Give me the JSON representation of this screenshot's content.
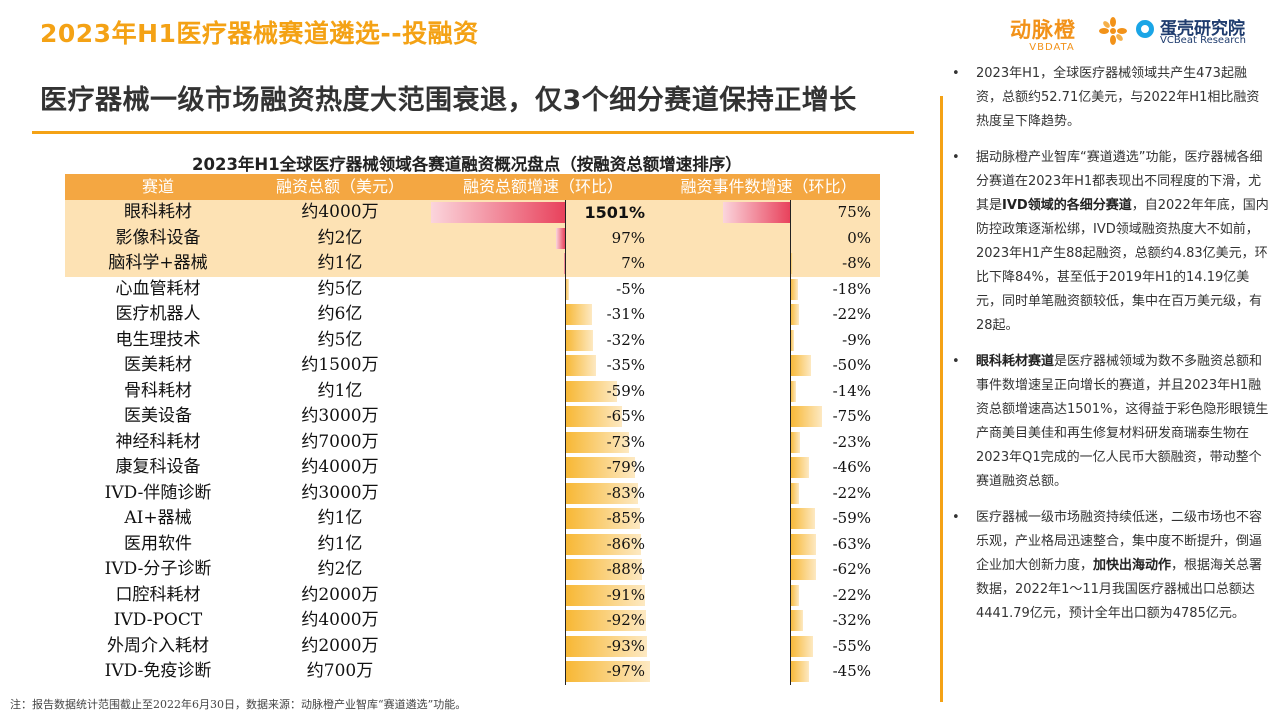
{
  "header": {
    "section_title": "2023年H1医疗器械赛道遴选--投融资",
    "headline": "医疗器械一级市场融资热度大范围衰退，仅3个细分赛道保持正增长"
  },
  "logos": {
    "dongmaicheng_cn": "动脉橙",
    "dongmaicheng_en": "VBDATA",
    "vcbeat_cn": "蛋壳研究院",
    "vcbeat_en": "VCBeat Research"
  },
  "colors": {
    "accent": "#f4a215",
    "header_fill": "#f4a742",
    "highlight_row": "#fde2b4",
    "positive_bar": "#e8425c",
    "negative_bar": "#f7b733"
  },
  "table": {
    "title": "2023年H1全球医疗器械领域各赛道融资概况盘点（按融资总额增速排序）",
    "columns": [
      "赛道",
      "融资总额（美元）",
      "融资总额增速（环比）",
      "融资事件数增速（环比）"
    ],
    "rows": [
      {
        "name": "眼科耗材",
        "amount": "约4000万",
        "growth_amount": "1501%",
        "growth_events": "75%"
      },
      {
        "name": "影像科设备",
        "amount": "约2亿",
        "growth_amount": "97%",
        "growth_events": "0%"
      },
      {
        "name": "脑科学+器械",
        "amount": "约1亿",
        "growth_amount": "7%",
        "growth_events": "-8%"
      },
      {
        "name": "心血管耗材",
        "amount": "约5亿",
        "growth_amount": "-5%",
        "growth_events": "-18%"
      },
      {
        "name": "医疗机器人",
        "amount": "约6亿",
        "growth_amount": "-31%",
        "growth_events": "-22%"
      },
      {
        "name": "电生理技术",
        "amount": "约5亿",
        "growth_amount": "-32%",
        "growth_events": "-9%"
      },
      {
        "name": "医美耗材",
        "amount": "约1500万",
        "growth_amount": "-35%",
        "growth_events": "-50%"
      },
      {
        "name": "骨科耗材",
        "amount": "约1亿",
        "growth_amount": "-59%",
        "growth_events": "-14%"
      },
      {
        "name": "医美设备",
        "amount": "约3000万",
        "growth_amount": "-65%",
        "growth_events": "-75%"
      },
      {
        "name": "神经科耗材",
        "amount": "约7000万",
        "growth_amount": "-73%",
        "growth_events": "-23%"
      },
      {
        "name": "康复科设备",
        "amount": "约4000万",
        "growth_amount": "-79%",
        "growth_events": "-46%"
      },
      {
        "name": "IVD-伴随诊断",
        "amount": "约3000万",
        "growth_amount": "-83%",
        "growth_events": "-22%"
      },
      {
        "name": "AI+器械",
        "amount": "约1亿",
        "growth_amount": "-85%",
        "growth_events": "-59%"
      },
      {
        "name": "医用软件",
        "amount": "约1亿",
        "growth_amount": "-86%",
        "growth_events": "-63%"
      },
      {
        "name": "IVD-分子诊断",
        "amount": "约2亿",
        "growth_amount": "-88%",
        "growth_events": "-62%"
      },
      {
        "name": "口腔科耗材",
        "amount": "约2000万",
        "growth_amount": "-91%",
        "growth_events": "-22%"
      },
      {
        "name": "IVD-POCT",
        "amount": "约4000万",
        "growth_amount": "-92%",
        "growth_events": "-32%"
      },
      {
        "name": "外周介入耗材",
        "amount": "约2000万",
        "growth_amount": "-93%",
        "growth_events": "-55%"
      },
      {
        "name": "IVD-免疫诊断",
        "amount": "约700万",
        "growth_amount": "-97%",
        "growth_events": "-45%"
      }
    ]
  },
  "chart_data": {
    "type": "table",
    "title": "2023年H1全球医疗器械领域各赛道融资概况盘点（按融资总额增速排序）",
    "categories": [
      "眼科耗材",
      "影像科设备",
      "脑科学+器械",
      "心血管耗材",
      "医疗机器人",
      "电生理技术",
      "医美耗材",
      "骨科耗材",
      "医美设备",
      "神经科耗材",
      "康复科设备",
      "IVD-伴随诊断",
      "AI+器械",
      "医用软件",
      "IVD-分子诊断",
      "口腔科耗材",
      "IVD-POCT",
      "外周介入耗材",
      "IVD-免疫诊断"
    ],
    "series": [
      {
        "name": "融资总额增速（环比）",
        "values": [
          1501,
          97,
          7,
          -5,
          -31,
          -32,
          -35,
          -59,
          -65,
          -73,
          -79,
          -83,
          -85,
          -86,
          -88,
          -91,
          -92,
          -93,
          -97
        ]
      },
      {
        "name": "融资事件数增速（环比）",
        "values": [
          75,
          0,
          -8,
          -18,
          -22,
          -9,
          -50,
          -14,
          -75,
          -23,
          -46,
          -22,
          -59,
          -63,
          -62,
          -22,
          -32,
          -55,
          -45
        ]
      }
    ]
  },
  "sidebar": {
    "bullets": [
      {
        "parts": [
          {
            "text": "2023年H1，全球医疗器械领域共产生473起融资，总额约52.71亿美元，与2022年H1相比融资热度呈下降趋势。",
            "bold": false
          }
        ]
      },
      {
        "parts": [
          {
            "text": "据动脉橙产业智库“赛道遴选”功能，医疗器械各细分赛道在2023年H1都表现出不同程度的下滑，尤其是",
            "bold": false
          },
          {
            "text": "IVD领域的各细分赛道",
            "bold": true
          },
          {
            "text": "，自2022年年底，国内防控政策逐渐松绑，IVD领域融资热度大不如前，2023年H1产生88起融资，总额约4.83亿美元，环比下降84%，甚至低于2019年H1的14.19亿美元，同时单笔融资额较低，集中在百万美元级，有28起。",
            "bold": false
          }
        ]
      },
      {
        "parts": [
          {
            "text": "眼科耗材赛道",
            "bold": true
          },
          {
            "text": "是医疗器械领域为数不多融资总额和事件数增速呈正向增长的赛道，并且2023年H1融资总额增速高达1501%，这得益于彩色隐形眼镜生产商美目美佳和再生修复材料研发商瑞泰生物在2023年Q1完成的一亿人民币大额融资，带动整个赛道融资总额。",
            "bold": false
          }
        ]
      },
      {
        "parts": [
          {
            "text": "医疗器械一级市场融资持续低迷，二级市场也不容乐观，产业格局迅速整合，集中度不断提升，倒逼企业加大创新力度，",
            "bold": false
          },
          {
            "text": "加快出海动作",
            "bold": true
          },
          {
            "text": "，根据海关总署数据，2022年1～11月我国医疗器械出口总额达4441.79亿元，预计全年出口额为4785亿元。",
            "bold": false
          }
        ]
      }
    ]
  },
  "footnote": "注：报告数据统计范围截止至2022年6月30日，数据来源：动脉橙产业智库“赛道遴选”功能。"
}
